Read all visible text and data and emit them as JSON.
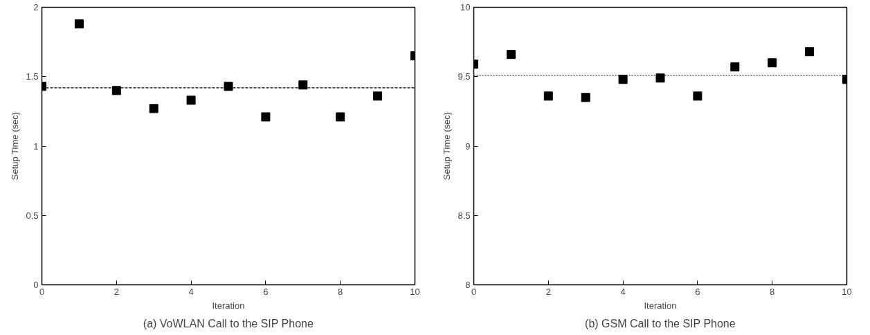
{
  "chart_data": [
    {
      "type": "scatter",
      "title": "(a) VoWLAN Call to the SIP Phone",
      "xlabel": "Iteration",
      "ylabel": "Setup Time (sec)",
      "x": [
        0,
        1,
        2,
        3,
        4,
        5,
        6,
        7,
        8,
        9,
        10
      ],
      "series": [
        {
          "color": "#000000",
          "values": [
            1.43,
            1.88,
            1.4,
            1.27,
            1.33,
            1.43,
            1.21,
            1.44,
            1.21,
            1.36,
            1.65
          ]
        }
      ],
      "marker": "square",
      "xlim": [
        0,
        10
      ],
      "xticks": [
        0,
        2,
        4,
        6,
        8,
        10
      ],
      "ylim": [
        0,
        2
      ],
      "yticks": [
        0,
        0.5,
        1,
        1.5,
        2
      ],
      "grid": false,
      "ref_lines": [
        {
          "axis": "y",
          "value": 1.42,
          "color": "#000000",
          "line_style": "dashed"
        }
      ]
    },
    {
      "type": "scatter",
      "title": "(b) GSM Call to the SIP Phone",
      "xlabel": "Iteration",
      "ylabel": "Setup Time (sec)",
      "x": [
        0,
        1,
        2,
        3,
        4,
        5,
        6,
        7,
        8,
        9,
        10
      ],
      "series": [
        {
          "color": "#000000",
          "values": [
            9.59,
            9.66,
            9.36,
            9.35,
            9.48,
            9.49,
            9.36,
            9.57,
            9.6,
            9.68,
            9.48
          ]
        }
      ],
      "marker": "square",
      "xlim": [
        0,
        10
      ],
      "xticks": [
        0,
        2,
        4,
        6,
        8,
        10
      ],
      "ylim": [
        8,
        10
      ],
      "yticks": [
        8,
        8.5,
        9,
        9.5,
        10
      ],
      "grid": false,
      "ref_lines": [
        {
          "axis": "y",
          "value": 9.51,
          "color": "#000000",
          "line_style": "dotted"
        }
      ]
    }
  ]
}
